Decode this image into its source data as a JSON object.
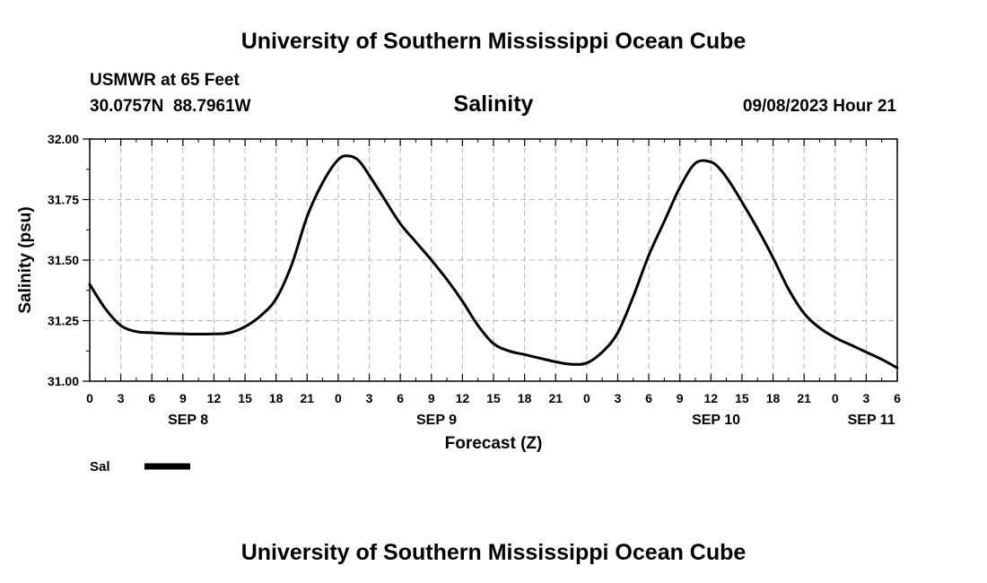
{
  "header": {
    "title": "University of Southern Mississippi Ocean Cube",
    "station": "USMWR at 65 Feet",
    "coords": "30.0757N  88.7961W",
    "timestamp": "09/08/2023 Hour 21"
  },
  "footer": {
    "title": "University of Southern Mississippi Ocean Cube"
  },
  "chart_data": {
    "type": "line",
    "title": "Salinity",
    "xlabel": "Forecast (Z)",
    "ylabel": "Salinity (psu)",
    "xlim": [
      0,
      78
    ],
    "ylim": [
      31.0,
      32.0
    ],
    "grid": true,
    "x_tick_values": [
      0,
      3,
      6,
      9,
      12,
      15,
      18,
      21,
      24,
      27,
      30,
      33,
      36,
      39,
      42,
      45,
      48,
      51,
      54,
      57,
      60,
      63,
      66,
      69,
      72,
      75,
      78
    ],
    "x_tick_labels": [
      "0",
      "3",
      "6",
      "9",
      "12",
      "15",
      "18",
      "21",
      "0",
      "3",
      "6",
      "9",
      "12",
      "15",
      "18",
      "21",
      "0",
      "3",
      "6",
      "9",
      "12",
      "15",
      "18",
      "21",
      "0",
      "3",
      "6"
    ],
    "y_tick_values": [
      31.0,
      31.25,
      31.5,
      31.75,
      32.0
    ],
    "y_tick_labels": [
      "31.00",
      "31.25",
      "31.50",
      "31.75",
      "32.00"
    ],
    "date_labels": [
      {
        "label": "SEP 8",
        "x": 9.5
      },
      {
        "label": "SEP 9",
        "x": 33.5
      },
      {
        "label": "SEP 10",
        "x": 60.5
      },
      {
        "label": "SEP 11",
        "x": 75.5
      }
    ],
    "legend": {
      "position": "bottom-left"
    },
    "series": [
      {
        "name": "Sal",
        "color": "#000000",
        "x": [
          0,
          1.5,
          3,
          4.5,
          6,
          9,
          12,
          13.5,
          15,
          16.5,
          18,
          19.5,
          21,
          22.5,
          24,
          25,
          26,
          27,
          28.5,
          30,
          31.5,
          33,
          34.5,
          36,
          37.5,
          39,
          40.5,
          42,
          43.5,
          45,
          46.5,
          48,
          49.5,
          51,
          52.5,
          54,
          55.5,
          57,
          58.5,
          60,
          61,
          62,
          63,
          64.5,
          66,
          67.5,
          69,
          70.5,
          72,
          73.5,
          75,
          76.5,
          78
        ],
        "values": [
          31.4,
          31.3,
          31.23,
          31.205,
          31.2,
          31.195,
          31.195,
          31.2,
          31.225,
          31.27,
          31.34,
          31.48,
          31.68,
          31.82,
          31.915,
          31.93,
          31.91,
          31.85,
          31.75,
          31.65,
          31.575,
          31.5,
          31.42,
          31.33,
          31.23,
          31.155,
          31.125,
          31.11,
          31.095,
          31.08,
          31.07,
          31.075,
          31.12,
          31.2,
          31.35,
          31.52,
          31.66,
          31.8,
          31.9,
          31.905,
          31.87,
          31.81,
          31.74,
          31.63,
          31.51,
          31.38,
          31.28,
          31.22,
          31.18,
          31.15,
          31.12,
          31.09,
          31.055
        ]
      }
    ]
  }
}
